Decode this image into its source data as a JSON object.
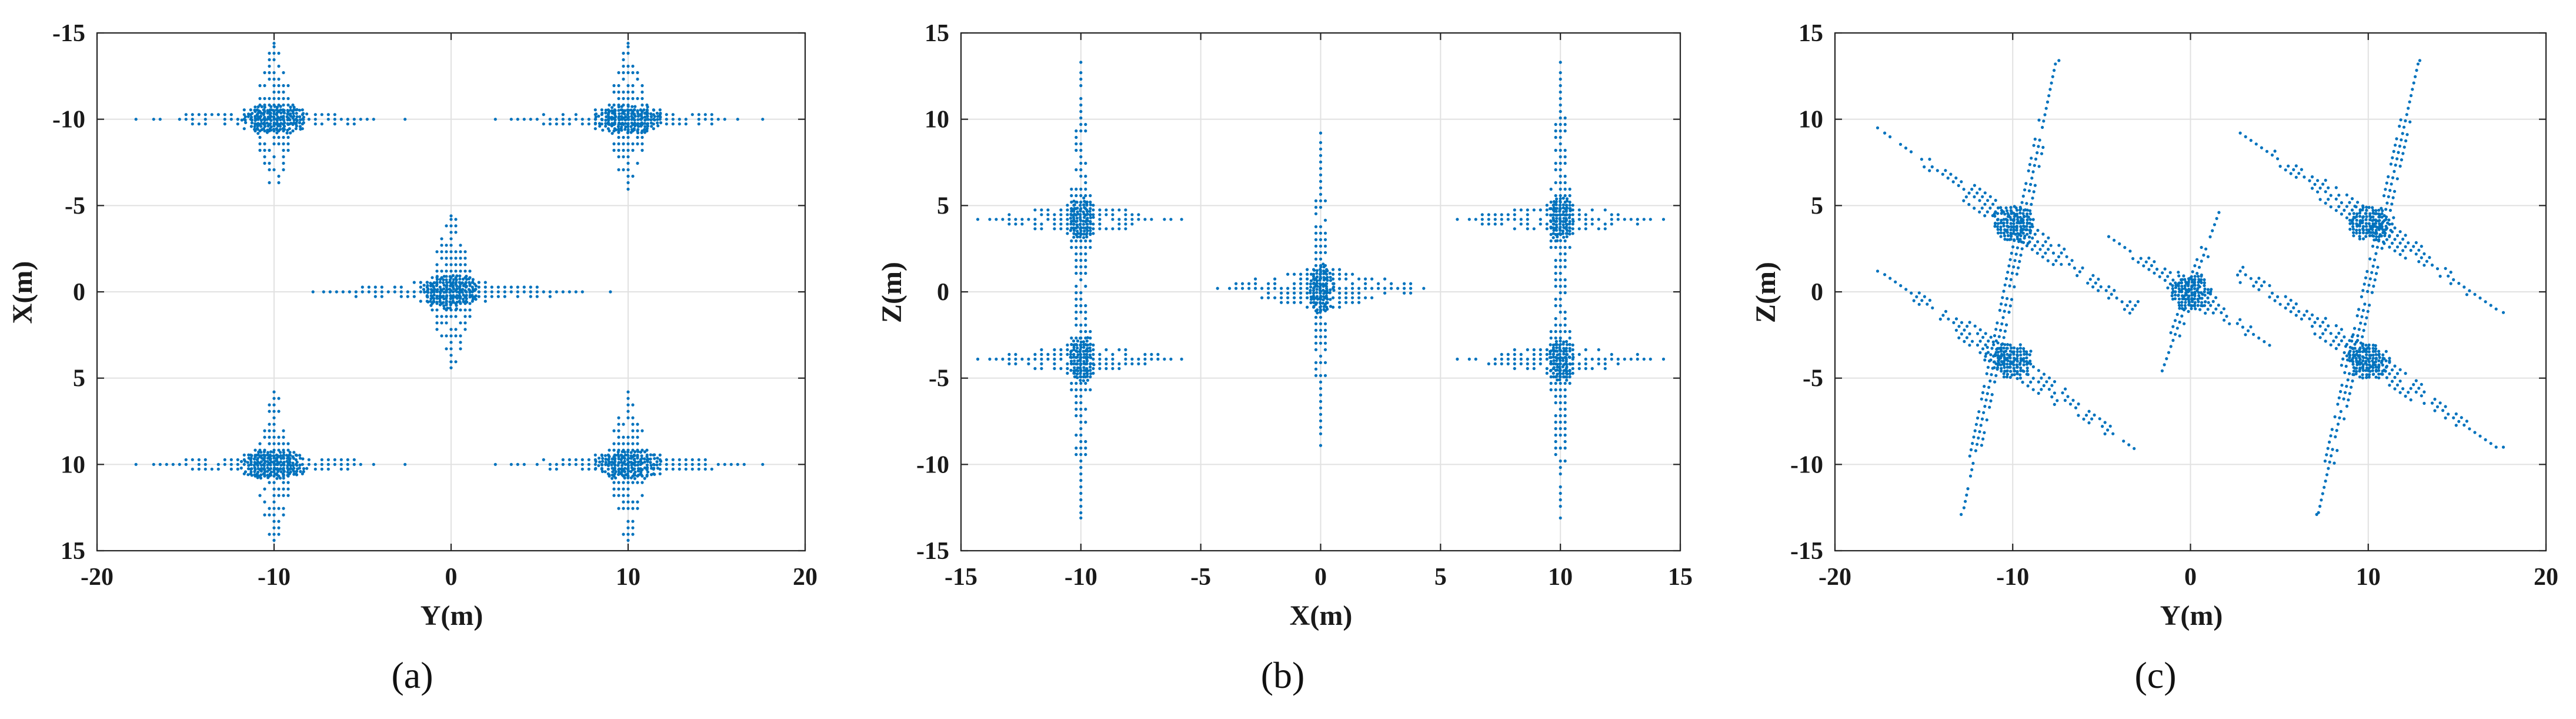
{
  "chart_data": [
    {
      "type": "scatter",
      "panel_label": "(a)",
      "xlabel": "Y(m)",
      "ylabel": "X(m)",
      "xlim": [
        -20,
        20
      ],
      "ylim": [
        -15,
        15
      ],
      "y_reversed": true,
      "xticks": [
        -20,
        -10,
        0,
        10,
        20
      ],
      "yticks": [
        -15,
        -10,
        -5,
        0,
        5,
        10,
        15
      ],
      "grid": true,
      "marker_color": "#0072BD",
      "clusters": [
        {
          "center": [
            -10,
            -10
          ],
          "spread": [
            2.0,
            0.9
          ]
        },
        {
          "center": [
            10,
            -10
          ],
          "spread": [
            2.0,
            0.9
          ]
        },
        {
          "center": [
            0,
            0
          ],
          "spread": [
            1.7,
            1.1
          ]
        },
        {
          "center": [
            -10,
            10
          ],
          "spread": [
            2.0,
            0.9
          ]
        },
        {
          "center": [
            10,
            10
          ],
          "spread": [
            2.0,
            0.9
          ]
        }
      ],
      "arms": [
        {
          "from": [
            -16.8,
            -10
          ],
          "to": [
            -4.3,
            -10
          ],
          "width": 0.7
        },
        {
          "from": [
            -10,
            -14.2
          ],
          "to": [
            -10,
            -5.8
          ],
          "width": 1.3
        },
        {
          "from": [
            3.4,
            -10
          ],
          "to": [
            16.8,
            -10
          ],
          "width": 0.7
        },
        {
          "from": [
            10,
            -14.2
          ],
          "to": [
            10,
            -5.8
          ],
          "width": 1.3
        },
        {
          "from": [
            -7.2,
            0
          ],
          "to": [
            7.6,
            0
          ],
          "width": 0.7
        },
        {
          "from": [
            0,
            -4.2
          ],
          "to": [
            0,
            4.2
          ],
          "width": 1.5
        },
        {
          "from": [
            -16.8,
            10
          ],
          "to": [
            -4.3,
            10
          ],
          "width": 0.7
        },
        {
          "from": [
            -10,
            5.8
          ],
          "to": [
            -10,
            14.2
          ],
          "width": 1.3
        },
        {
          "from": [
            3.4,
            10
          ],
          "to": [
            16.8,
            10
          ],
          "width": 0.7
        },
        {
          "from": [
            10,
            5.8
          ],
          "to": [
            10,
            14.2
          ],
          "width": 1.3
        }
      ],
      "isolated_points": [
        [
          -17.8,
          -10
        ],
        [
          -2.6,
          -10
        ],
        [
          2.5,
          -10
        ],
        [
          17.6,
          -10
        ],
        [
          -7.8,
          0
        ],
        [
          9.0,
          0
        ],
        [
          0,
          -4.4
        ],
        [
          0,
          4.4
        ],
        [
          -17.8,
          10
        ],
        [
          -2.6,
          10
        ],
        [
          2.5,
          10
        ],
        [
          17.6,
          10
        ],
        [
          -10,
          -14.4
        ],
        [
          10,
          -14.4
        ],
        [
          -10,
          14.4
        ],
        [
          10,
          14.4
        ]
      ]
    },
    {
      "type": "scatter",
      "panel_label": "(b)",
      "xlabel": "X(m)",
      "ylabel": "Z(m)",
      "xlim": [
        -15,
        15
      ],
      "ylim": [
        -15,
        15
      ],
      "y_reversed": false,
      "xticks": [
        -15,
        -10,
        -5,
        0,
        5,
        10,
        15
      ],
      "yticks": [
        -15,
        -10,
        -5,
        0,
        5,
        10,
        15
      ],
      "grid": true,
      "marker_color": "#0072BD",
      "clusters": [
        {
          "center": [
            -10,
            4.2
          ],
          "spread": [
            0.55,
            1.4
          ]
        },
        {
          "center": [
            -10,
            -3.9
          ],
          "spread": [
            0.55,
            1.4
          ]
        },
        {
          "center": [
            0,
            0.2
          ],
          "spread": [
            0.55,
            1.6
          ]
        },
        {
          "center": [
            10,
            4.2
          ],
          "spread": [
            0.55,
            1.4
          ]
        },
        {
          "center": [
            10,
            -3.9
          ],
          "spread": [
            0.55,
            1.4
          ]
        }
      ],
      "arms": [
        {
          "from": [
            -10,
            -12.8
          ],
          "to": [
            -10,
            13.0
          ],
          "width": 0.55
        },
        {
          "from": [
            10,
            -12.8
          ],
          "to": [
            10,
            13.0
          ],
          "width": 0.55
        },
        {
          "from": [
            0,
            -8.6
          ],
          "to": [
            0,
            8.8
          ],
          "width": 0.45
        },
        {
          "from": [
            -13.8,
            4.2
          ],
          "to": [
            -6.2,
            4.2
          ],
          "width": 0.8
        },
        {
          "from": [
            -13.8,
            -3.9
          ],
          "to": [
            -6.2,
            -3.9
          ],
          "width": 0.8
        },
        {
          "from": [
            6.2,
            4.2
          ],
          "to": [
            13.8,
            4.2
          ],
          "width": 0.8
        },
        {
          "from": [
            6.2,
            -3.9
          ],
          "to": [
            13.8,
            -3.9
          ],
          "width": 0.8
        },
        {
          "from": [
            -3.8,
            0.2
          ],
          "to": [
            3.8,
            0.2
          ],
          "width": 1.1
        }
      ],
      "isolated_points": [
        [
          -10,
          13.3
        ],
        [
          -10,
          -13.1
        ],
        [
          10,
          13.3
        ],
        [
          10,
          -13.1
        ],
        [
          0,
          9.2
        ],
        [
          0,
          -8.9
        ],
        [
          -14.3,
          4.2
        ],
        [
          -5.8,
          4.2
        ],
        [
          -14.3,
          -3.9
        ],
        [
          -5.8,
          -3.9
        ],
        [
          5.7,
          4.2
        ],
        [
          14.3,
          4.2
        ],
        [
          5.7,
          -3.9
        ],
        [
          14.3,
          -3.9
        ],
        [
          -4.3,
          0.2
        ],
        [
          4.3,
          0.2
        ]
      ]
    },
    {
      "type": "scatter",
      "panel_label": "(c)",
      "xlabel": "Y(m)",
      "ylabel": "Z(m)",
      "xlim": [
        -20,
        20
      ],
      "ylim": [
        -15,
        15
      ],
      "y_reversed": false,
      "xticks": [
        -20,
        -10,
        0,
        10,
        20
      ],
      "yticks": [
        -15,
        -10,
        -5,
        0,
        5,
        10,
        15
      ],
      "grid": true,
      "marker_color": "#0072BD",
      "clusters": [
        {
          "center": [
            -10,
            4
          ],
          "spread": [
            1.2,
            1.1
          ]
        },
        {
          "center": [
            -10,
            -4
          ],
          "spread": [
            1.2,
            1.1
          ]
        },
        {
          "center": [
            0,
            0
          ],
          "spread": [
            1.2,
            1.1
          ]
        },
        {
          "center": [
            10,
            4
          ],
          "spread": [
            1.2,
            1.1
          ]
        },
        {
          "center": [
            10,
            -4
          ],
          "spread": [
            1.2,
            1.1
          ]
        }
      ],
      "arms": [
        {
          "from": [
            -17.2,
            9.2
          ],
          "to": [
            -3.0,
            -1.2
          ],
          "width": 0.8
        },
        {
          "from": [
            -17.2,
            1.0
          ],
          "to": [
            -3.0,
            -9.2
          ],
          "width": 0.8
        },
        {
          "from": [
            -7.6,
            13.2
          ],
          "to": [
            -12.8,
            -12.8
          ],
          "width": 0.6
        },
        {
          "from": [
            2.8,
            9.2
          ],
          "to": [
            17.2,
            -1.0
          ],
          "width": 0.8
        },
        {
          "from": [
            2.8,
            1.2
          ],
          "to": [
            17.2,
            -9.0
          ],
          "width": 0.8
        },
        {
          "from": [
            12.8,
            13.2
          ],
          "to": [
            7.2,
            -12.8
          ],
          "width": 0.6
        },
        {
          "from": [
            -4.6,
            3.2
          ],
          "to": [
            4.6,
            -3.2
          ],
          "width": 0.7
        },
        {
          "from": [
            1.6,
            4.6
          ],
          "to": [
            -1.6,
            -4.6
          ],
          "width": 0.5
        }
      ],
      "isolated_points": [
        [
          -17.6,
          9.5
        ],
        [
          -17.6,
          1.2
        ],
        [
          17.6,
          -1.2
        ],
        [
          17.6,
          -9.0
        ],
        [
          -7.4,
          13.4
        ],
        [
          12.9,
          13.4
        ],
        [
          -12.9,
          -12.9
        ],
        [
          7.1,
          -12.9
        ]
      ]
    }
  ]
}
